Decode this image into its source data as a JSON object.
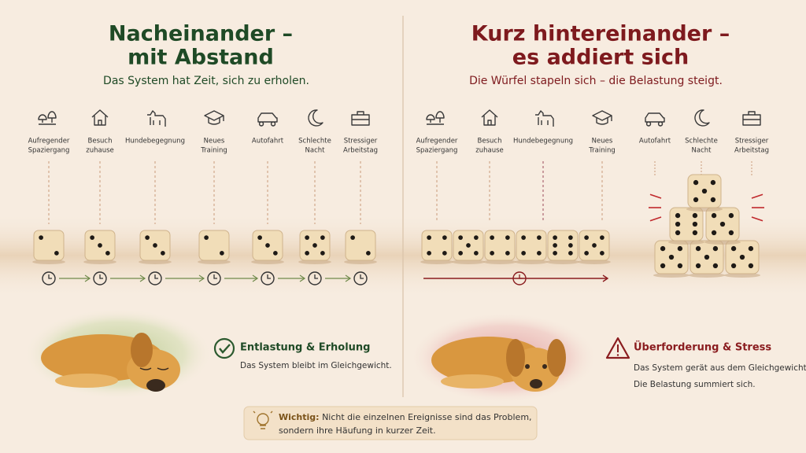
{
  "left": {
    "title": [
      "Nacheinander –",
      "mit Abstand"
    ],
    "subtitle": "Das System hat Zeit, sich zu erholen.",
    "events": [
      [
        "Aufregender",
        "Spaziergang"
      ],
      [
        "Besuch",
        "zuhause"
      ],
      [
        "Hundebegegnung"
      ],
      [
        "Neues",
        "Training"
      ],
      [
        "Autofahrt"
      ],
      [
        "Schlechte",
        "Nacht"
      ],
      [
        "Stressiger",
        "Arbeitstag"
      ]
    ],
    "result_title": "Entlastung & Erholung",
    "result_text": [
      "Das System bleibt im Gleichgewicht."
    ]
  },
  "right": {
    "title": [
      "Kurz hintereinander –",
      "es addiert sich"
    ],
    "subtitle": "Die Würfel stapeln sich – die Belastung steigt.",
    "events": [
      [
        "Aufregender",
        "Spaziergang"
      ],
      [
        "Besuch",
        "zuhause"
      ],
      [
        "Hundebegegnung"
      ],
      [
        "Neues",
        "Training"
      ],
      [
        "Autofahrt"
      ],
      [
        "Schlechte",
        "Nacht"
      ],
      [
        "Stressiger",
        "Arbeitstag"
      ]
    ],
    "result_title": "Überforderung & Stress",
    "result_text": [
      "Das System gerät aus dem Gleichgewicht.",
      "Die Belastung summiert sich."
    ]
  },
  "note": {
    "label": "Wichtig:",
    "text": [
      "Nicht die einzelnen Ereignisse sind das Problem,",
      "sondern ihre Häufung in kurzer Zeit."
    ]
  }
}
